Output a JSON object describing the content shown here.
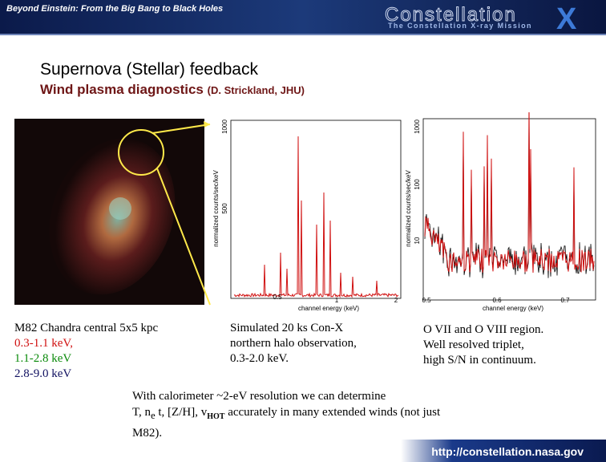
{
  "header": {
    "tagline": "Beyond Einstein: From the Big Bang to Black Holes",
    "logo": "Constellation",
    "logo_x": "X",
    "logo_subtitle": "The Constellation X-ray Mission"
  },
  "slide": {
    "title": "Supernova (Stellar) feedback",
    "subtitle": "Wind plasma diagnostics",
    "credit": "(D. Strickland, JHU)"
  },
  "image_caption": {
    "lines": [
      "M82 Chandra central 5x5 kpc",
      "0.3-1.1 keV,",
      "1.1-2.8 keV",
      "2.8-9.0 keV"
    ]
  },
  "plot1": {
    "ylabel": "normalized counts/sec/keV",
    "xlabel": "channel energy (keV)",
    "yticks": [
      "1000",
      "500"
    ],
    "xticks": [
      "0.5",
      "1",
      "2"
    ],
    "caption": [
      "Simulated 20 ks Con-X",
      "northern halo observation,",
      "0.3-2.0 keV."
    ]
  },
  "plot2": {
    "ylabel": "normalized counts/sec/keV",
    "xlabel": "channel energy (keV)",
    "yticks": [
      "1000",
      "100",
      "10"
    ],
    "xticks": [
      "0.5",
      "0.6",
      "0.7"
    ],
    "caption": [
      "O VII and O VIII region.",
      "Well resolved triplet,",
      "high S/N in continuum."
    ]
  },
  "conclusion": {
    "line1": "With calorimeter ~2-eV resolution we can determine",
    "line2_a": "T, n",
    "line2_sub1": "e",
    "line2_b": " t, [Z/H], v",
    "line2_sub2": "HOT",
    "line2_c": " accurately in many extended winds (not just",
    "line3": "M82)."
  },
  "footer": {
    "url": "http://constellation.nasa.gov"
  }
}
